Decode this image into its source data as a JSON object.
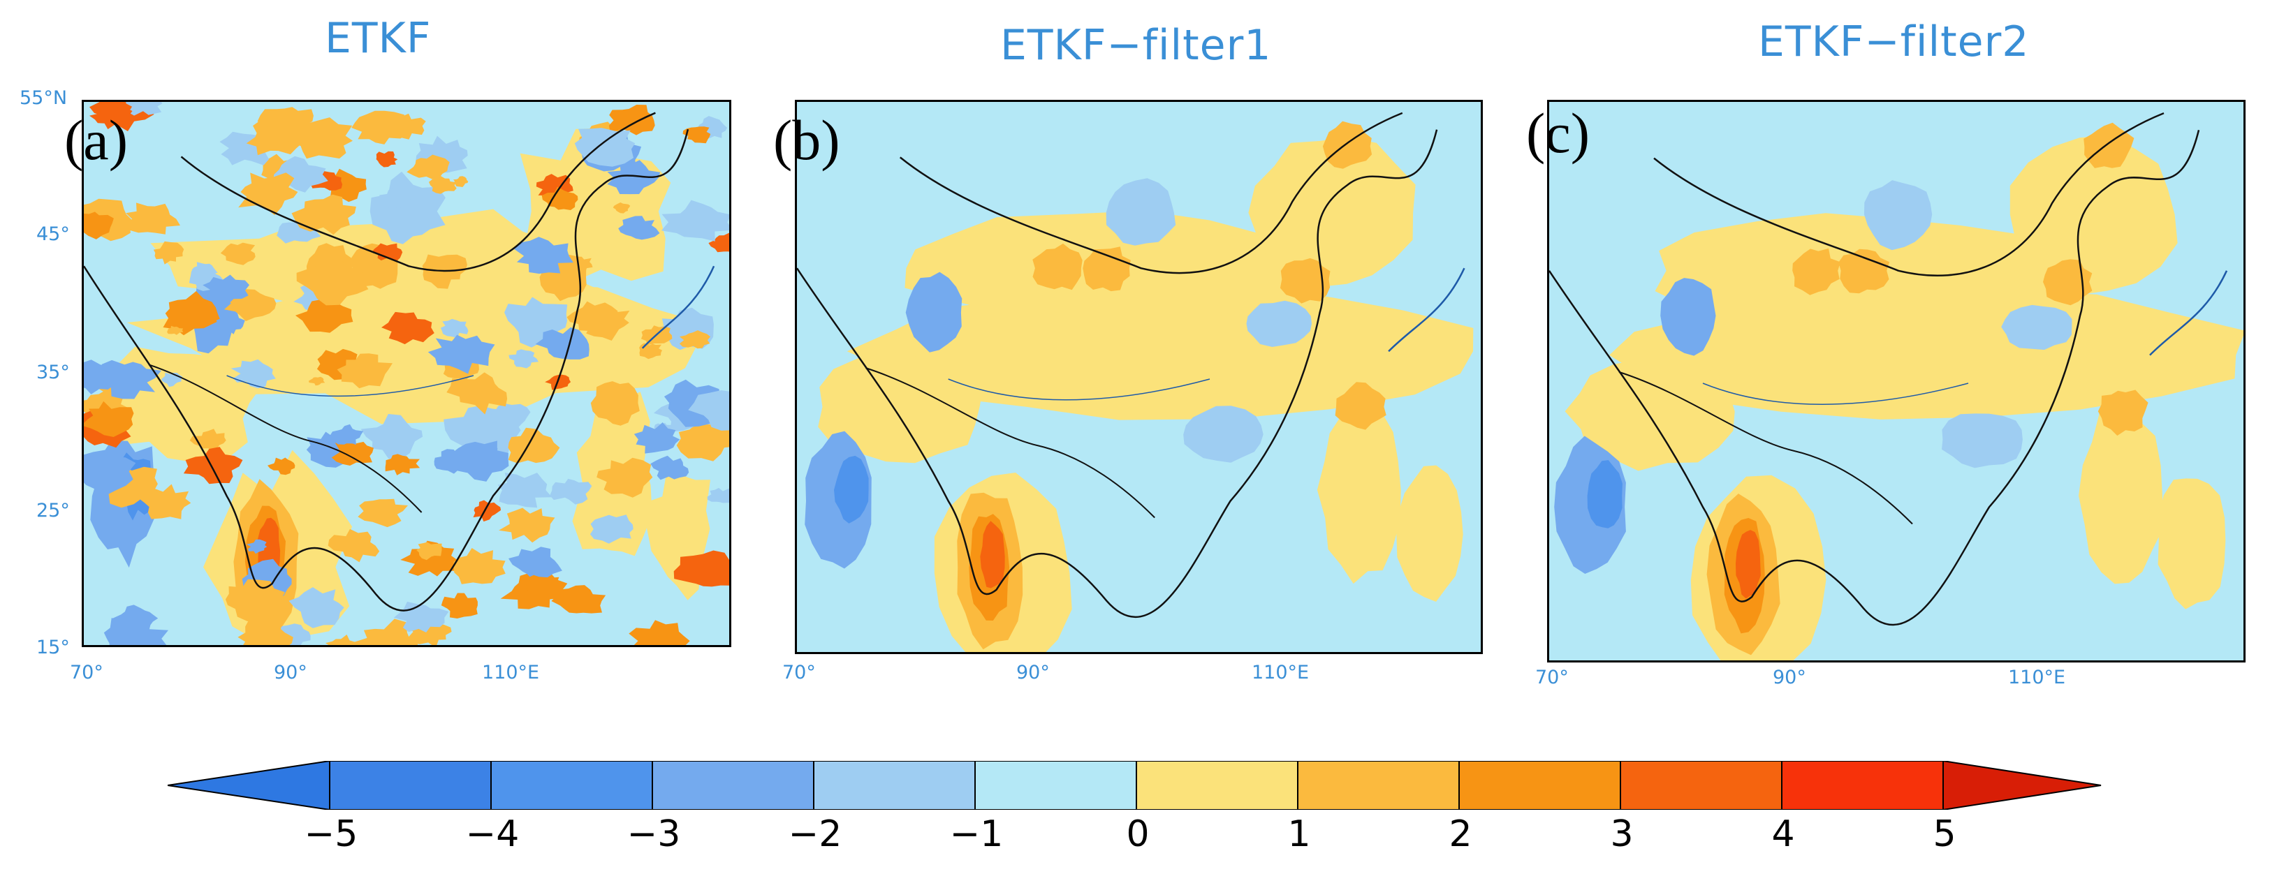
{
  "panels": [
    {
      "title": "ETKF",
      "label": "(a)"
    },
    {
      "title": "ETKF−filter1",
      "label": "(b)"
    },
    {
      "title": "ETKF−filter2",
      "label": "(c)"
    }
  ],
  "lat_ticks": [
    "55°N",
    "45°",
    "35°",
    "25°",
    "15°"
  ],
  "lon_ticks": [
    "70°",
    "90°",
    "110°E"
  ],
  "colorbar": {
    "labels": [
      "−5",
      "−4",
      "−3",
      "−2",
      "−1",
      "0",
      "1",
      "2",
      "3",
      "4",
      "5"
    ],
    "colors": [
      "#3c82e6",
      "#4f94ec",
      "#74aaee",
      "#9ecdf2",
      "#b4e8f6",
      "#fbe27a",
      "#fbba3e",
      "#f79414",
      "#f5640f",
      "#f7320a"
    ],
    "left_arrow_color": "#2e78e2",
    "right_arrow_color": "#d81e06"
  },
  "field": {
    "background_color": "#b4e8f6",
    "colors": {
      "pos1": "#fbe27a",
      "pos2": "#fbba3e",
      "pos3": "#f79414",
      "pos4": "#f5640f",
      "pos5": "#d81e06",
      "neg2": "#9ecdf2",
      "neg3": "#74aaee",
      "neg4": "#4f94ec"
    },
    "line_color": "#111111",
    "coast_color": "#1e5aa8"
  }
}
